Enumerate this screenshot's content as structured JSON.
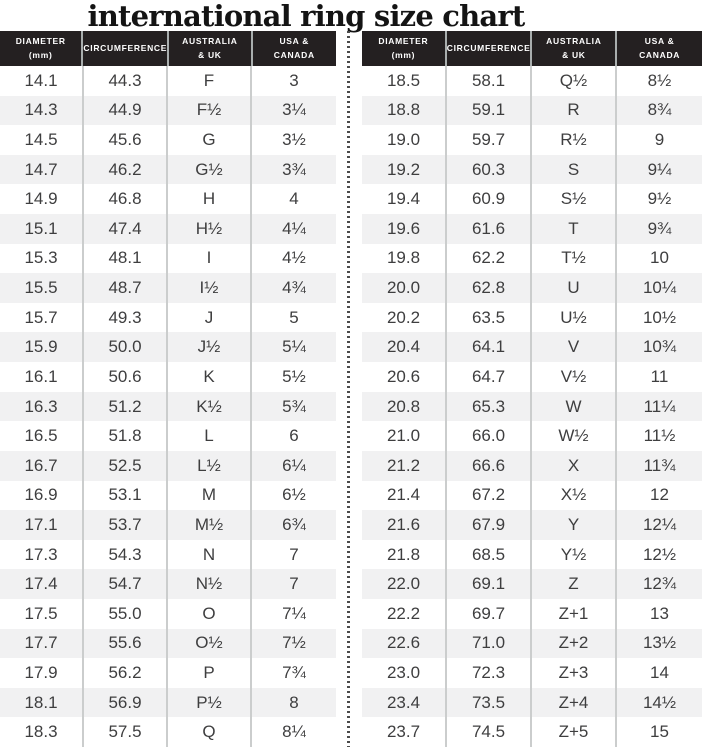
{
  "title": "international ring size chart",
  "colors": {
    "header-bg": "#242021",
    "header-text": "#ffffff",
    "header-line": "#a9aeae",
    "column-line": "#cbcdcd",
    "row-alt": "#f1f1f2",
    "body-text": "#3e3e3f",
    "divider-dot": "#4a4a4a"
  },
  "chart_data": {
    "type": "table",
    "title": "international ring size chart",
    "columns": [
      "DIAMETER (mm)",
      "CIRCUMFERENCE",
      "AUSTRALIA & UK",
      "USA & CANADA"
    ],
    "tables": [
      {
        "headers": [
          "DIAMETER\n(mm)",
          "CIRCUMFERENCE",
          "AUSTRALIA\n& UK",
          "USA &\nCANADA"
        ],
        "rows": [
          [
            "14.1",
            "44.3",
            "F",
            "3"
          ],
          [
            "14.3",
            "44.9",
            "F½",
            "3¼"
          ],
          [
            "14.5",
            "45.6",
            "G",
            "3½"
          ],
          [
            "14.7",
            "46.2",
            "G½",
            "3¾"
          ],
          [
            "14.9",
            "46.8",
            "H",
            "4"
          ],
          [
            "15.1",
            "47.4",
            "H½",
            "4¼"
          ],
          [
            "15.3",
            "48.1",
            "I",
            "4½"
          ],
          [
            "15.5",
            "48.7",
            "I½",
            "4¾"
          ],
          [
            "15.7",
            "49.3",
            "J",
            "5"
          ],
          [
            "15.9",
            "50.0",
            "J½",
            "5¼"
          ],
          [
            "16.1",
            "50.6",
            "K",
            "5½"
          ],
          [
            "16.3",
            "51.2",
            "K½",
            "5¾"
          ],
          [
            "16.5",
            "51.8",
            "L",
            "6"
          ],
          [
            "16.7",
            "52.5",
            "L½",
            "6¼"
          ],
          [
            "16.9",
            "53.1",
            "M",
            "6½"
          ],
          [
            "17.1",
            "53.7",
            "M½",
            "6¾"
          ],
          [
            "17.3",
            "54.3",
            "N",
            "7"
          ],
          [
            "17.4",
            "54.7",
            "N½",
            "7"
          ],
          [
            "17.5",
            "55.0",
            "O",
            "7¼"
          ],
          [
            "17.7",
            "55.6",
            "O½",
            "7½"
          ],
          [
            "17.9",
            "56.2",
            "P",
            "7¾"
          ],
          [
            "18.1",
            "56.9",
            "P½",
            "8"
          ],
          [
            "18.3",
            "57.5",
            "Q",
            "8¼"
          ]
        ]
      },
      {
        "headers": [
          "DIAMETER\n(mm)",
          "CIRCUMFERENCE",
          "AUSTRALIA\n& UK",
          "USA &\nCANADA"
        ],
        "rows": [
          [
            "18.5",
            "58.1",
            "Q½",
            "8½"
          ],
          [
            "18.8",
            "59.1",
            "R",
            "8¾"
          ],
          [
            "19.0",
            "59.7",
            "R½",
            "9"
          ],
          [
            "19.2",
            "60.3",
            "S",
            "9¼"
          ],
          [
            "19.4",
            "60.9",
            "S½",
            "9½"
          ],
          [
            "19.6",
            "61.6",
            "T",
            "9¾"
          ],
          [
            "19.8",
            "62.2",
            "T½",
            "10"
          ],
          [
            "20.0",
            "62.8",
            "U",
            "10¼"
          ],
          [
            "20.2",
            "63.5",
            "U½",
            "10½"
          ],
          [
            "20.4",
            "64.1",
            "V",
            "10¾"
          ],
          [
            "20.6",
            "64.7",
            "V½",
            "11"
          ],
          [
            "20.8",
            "65.3",
            "W",
            "11¼"
          ],
          [
            "21.0",
            "66.0",
            "W½",
            "11½"
          ],
          [
            "21.2",
            "66.6",
            "X",
            "11¾"
          ],
          [
            "21.4",
            "67.2",
            "X½",
            "12"
          ],
          [
            "21.6",
            "67.9",
            "Y",
            "12¼"
          ],
          [
            "21.8",
            "68.5",
            "Y½",
            "12½"
          ],
          [
            "22.0",
            "69.1",
            "Z",
            "12¾"
          ],
          [
            "22.2",
            "69.7",
            "Z+1",
            "13"
          ],
          [
            "22.6",
            "71.0",
            "Z+2",
            "13½"
          ],
          [
            "23.0",
            "72.3",
            "Z+3",
            "14"
          ],
          [
            "23.4",
            "73.5",
            "Z+4",
            "14½"
          ],
          [
            "23.7",
            "74.5",
            "Z+5",
            "15"
          ]
        ]
      }
    ]
  }
}
